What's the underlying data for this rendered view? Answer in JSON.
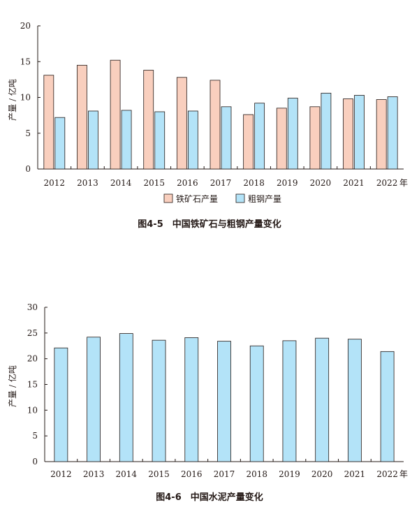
{
  "chart_data": [
    {
      "type": "bar",
      "title": "图4-5　中国铁矿石与粗钢产量变化",
      "ylabel": "产量 / 亿吨",
      "xlabel": "",
      "unit_suffix": "年",
      "ylim": [
        0,
        20
      ],
      "yticks": [
        0,
        5,
        10,
        15,
        20
      ],
      "categories": [
        "2012",
        "2013",
        "2014",
        "2015",
        "2016",
        "2017",
        "2018",
        "2019",
        "2020",
        "2021",
        "2022"
      ],
      "series": [
        {
          "name": "铁矿石产量",
          "color": "#f9cfbe",
          "values": [
            13.1,
            14.5,
            15.2,
            13.8,
            12.8,
            12.4,
            7.6,
            8.5,
            8.7,
            9.8,
            9.7
          ]
        },
        {
          "name": "粗钢产量",
          "color": "#b3e3f8",
          "values": [
            7.2,
            8.1,
            8.2,
            8.0,
            8.1,
            8.7,
            9.2,
            9.9,
            10.6,
            10.3,
            10.1
          ]
        }
      ],
      "legend": "bottom"
    },
    {
      "type": "bar",
      "title": "图4-6　中国水泥产量变化",
      "ylabel": "产量 / 亿吨",
      "xlabel": "",
      "unit_suffix": "年",
      "ylim": [
        0,
        30
      ],
      "yticks": [
        0,
        5,
        10,
        15,
        20,
        25,
        30
      ],
      "categories": [
        "2012",
        "2013",
        "2014",
        "2015",
        "2016",
        "2017",
        "2018",
        "2019",
        "2020",
        "2021",
        "2022"
      ],
      "series": [
        {
          "name": "",
          "color": "#b3e3f8",
          "values": [
            22.1,
            24.2,
            24.9,
            23.6,
            24.1,
            23.4,
            22.5,
            23.5,
            24.0,
            23.8,
            21.4
          ]
        }
      ]
    }
  ]
}
